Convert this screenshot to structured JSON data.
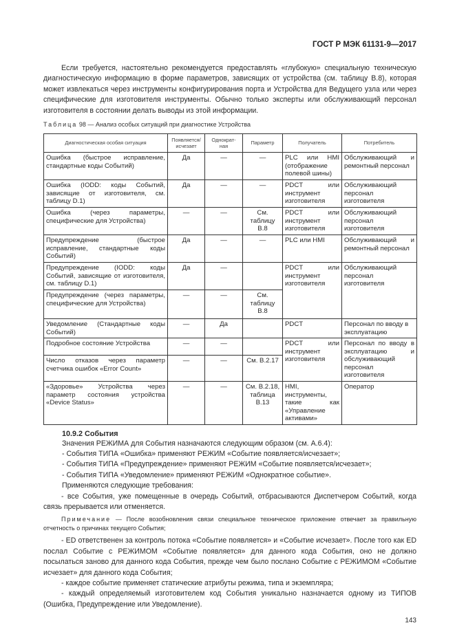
{
  "header": {
    "doc_id": "ГОСТ Р МЭК 61131-9—2017"
  },
  "intro": "Если требуется, настоятельно рекомендуется предоставлять «глубокую» специальную техническую диагностическую информацию в форме параметров, зависящих от устройства (см. таблицу В.8), которая может извлекаться через инструменты конфигурирования порта и Устройства для Ведущего узла или через специфические для изготовителя инструменты. Обычно только эксперты или обслуживающий персонал изготовителя в состоянии делать выводы из этой информации.",
  "table": {
    "caption_label": "Таблица",
    "caption_text": "98 — Анализ особых ситуаций при диагностике Устройства",
    "headers": [
      "Диагностическая особая ситуация",
      "Появляется/ исчезает",
      "Однократ- ная",
      "Параметр",
      "Получатель",
      "Потребитель"
    ],
    "rows": [
      {
        "situation": "Ошибка (быстрое исправление, стандартные коды Событий)",
        "appear": "Да",
        "once": "—",
        "param": "—",
        "receiver": "PLC или HMI (отображение полевой шины)",
        "consumer": "Обслуживающий и ремонтный персонал"
      },
      {
        "situation": "Ошибка (IODD: коды Событий, зависящие от изготовителя, см. таблицу D.1)",
        "appear": "Да",
        "once": "—",
        "param": "—",
        "receiver": "PDCT или инструмент изготовителя",
        "consumer": "Обслуживающий персонал изготовителя"
      },
      {
        "situation": "Ошибка (через параметры, специфические для Устройства)",
        "appear": "—",
        "once": "—",
        "param": "См. таблицу В.8",
        "receiver": "PDCT или инструмент изготовителя",
        "consumer": "Обслуживающий персонал изготовителя"
      },
      {
        "situation": "Предупреждение (быстрое исправление, стандартные коды Событий)",
        "appear": "Да",
        "once": "—",
        "param": "—",
        "receiver": "PLC или HMI",
        "consumer": "Обслуживающий и ремонтный персонал"
      },
      {
        "situation": "Предупреждение (IODD: коды Событий, зависящие от изготовителя, см. таблицу D.1)",
        "appear": "Да",
        "once": "—",
        "param": "",
        "receiver": "PDCT или инструмент изготовителя",
        "consumer": "Обслуживающий персонал изготовителя"
      },
      {
        "situation": "Предупреждение (через параметры, специфические для Устройства)",
        "appear": "—",
        "once": "—",
        "param": "См. таблицу В.8"
      },
      {
        "situation": "Уведомление (Стандартные коды Событий)",
        "appear": "—",
        "once": "Да",
        "param": "",
        "receiver": "PDCT",
        "consumer": "Персонал по вводу в эксплуатацию"
      },
      {
        "situation": "Подробное состояние Устройства",
        "appear": "—",
        "once": "—",
        "param": "",
        "receiver": "PDCT или инструмент изготовителя",
        "consumer": "Персонал по вводу в эксплуатацию и обслуживающий персонал изготовителя"
      },
      {
        "situation": "Число отказов через параметр счетчика ошибок «Error Count»",
        "appear": "—",
        "once": "—",
        "param": "См. В.2.17"
      },
      {
        "situation": "«Здоровье» Устройства через параметр состояния устройства «Device Status»",
        "appear": "—",
        "once": "—",
        "param": "См. В.2.18, таблица В.13",
        "receiver": "HMI, инструменты, такие как «Управление активами»",
        "consumer": "Оператор"
      }
    ]
  },
  "section": {
    "title": "10.9.2 События",
    "lines": [
      "Значения РЕЖИМА для События назначаются следующим образом (см. А.6.4):",
      "- События ТИПА «Ошибка» применяют РЕЖИМ «Событие появляется/исчезает»;",
      "- События ТИПА «Предупреждение» применяют РЕЖИМ «Событие появляется/исчезает»;",
      "- События ТИПА «Уведомление» применяют РЕЖИМ «Однократное событие».",
      "Применяются следующие требования:"
    ],
    "req1": "- все События, уже помещенные в очередь Событий, отбрасываются Диспетчером Событий, когда связь прерывается или отменяется.",
    "note_label": "Примечание",
    "note_text": "— После возобновления связи специальное техническое приложение отвечает за правильную отчетность о причинах текущего События;",
    "req2": "- ED ответственен за контроль потока «Событие появляется» и «Событие исчезает». После того как ED послал Событие с РЕЖИМОМ «Событие появляется» для данного кода События, оно не должно посылаться заново для данного кода События, прежде чем было послано Событие с РЕЖИМОМ «Событие исчезает» для данного кода События;",
    "req3": "- каждое событие применяет статические атрибуты режима, типа и экземпляра;",
    "req4": "- каждый определяемый изготовителем код События уникально назначается одному из ТИПОВ (Ошибка, Предупреждение или Уведомление)."
  },
  "footer": {
    "page_number": "143"
  }
}
